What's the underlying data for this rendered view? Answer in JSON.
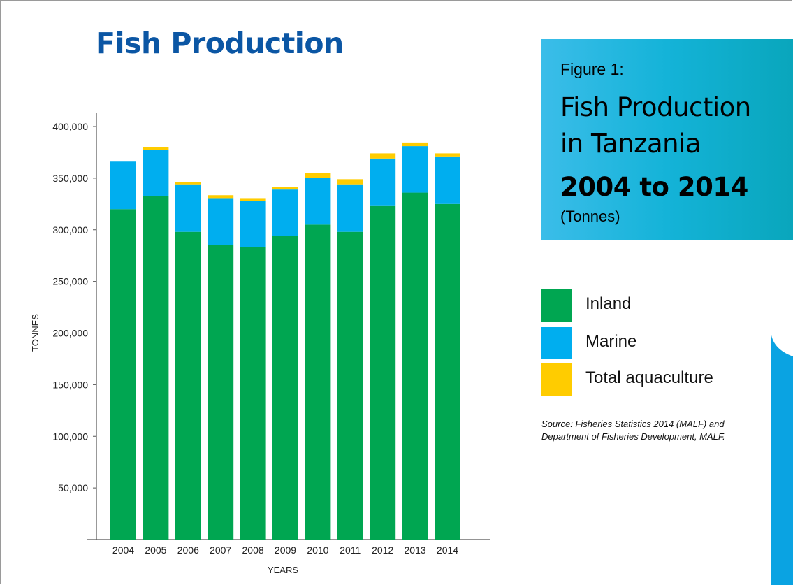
{
  "page": {
    "title": "Fish Production"
  },
  "figure": {
    "label": "Figure 1:",
    "title_line1": "Fish Production",
    "title_line2": "in Tanzania",
    "years": "2004 to 2014",
    "unit": "(Tonnes)"
  },
  "legend": [
    {
      "label": "Inland",
      "color": "#00a651"
    },
    {
      "label": "Marine",
      "color": "#00aeef"
    },
    {
      "label": "Total aquaculture",
      "color": "#ffcc00"
    }
  ],
  "source": "Source: Fisheries Statistics 2014 (MALF) and Department of Fisheries Development, MALF.",
  "chart_data": {
    "type": "bar",
    "stacked": true,
    "categories": [
      "2004",
      "2005",
      "2006",
      "2007",
      "2008",
      "2009",
      "2010",
      "2011",
      "2012",
      "2013",
      "2014"
    ],
    "series": [
      {
        "name": "Inland",
        "color": "#00a651",
        "values": [
          320000,
          333000,
          298000,
          285000,
          283000,
          294000,
          305000,
          298000,
          323000,
          336000,
          325000
        ]
      },
      {
        "name": "Marine",
        "color": "#00aeef",
        "values": [
          46000,
          44000,
          46000,
          45000,
          45000,
          45000,
          45000,
          46000,
          46000,
          45000,
          46000
        ]
      },
      {
        "name": "Total aquaculture",
        "color": "#ffcc00",
        "values": [
          0,
          3000,
          2000,
          3500,
          2000,
          2500,
          5000,
          5000,
          5000,
          3500,
          3000
        ]
      }
    ],
    "xlabel": "YEARS",
    "ylabel": "TONNES",
    "ylim": [
      0,
      400000
    ],
    "yticks": [
      50000,
      100000,
      150000,
      200000,
      250000,
      300000,
      350000,
      400000
    ],
    "ytick_labels": [
      "50,000",
      "100,000",
      "150,000",
      "200,000",
      "250,000",
      "300,000",
      "350,000",
      "400,000"
    ],
    "grid": false,
    "legend_position": "right"
  }
}
